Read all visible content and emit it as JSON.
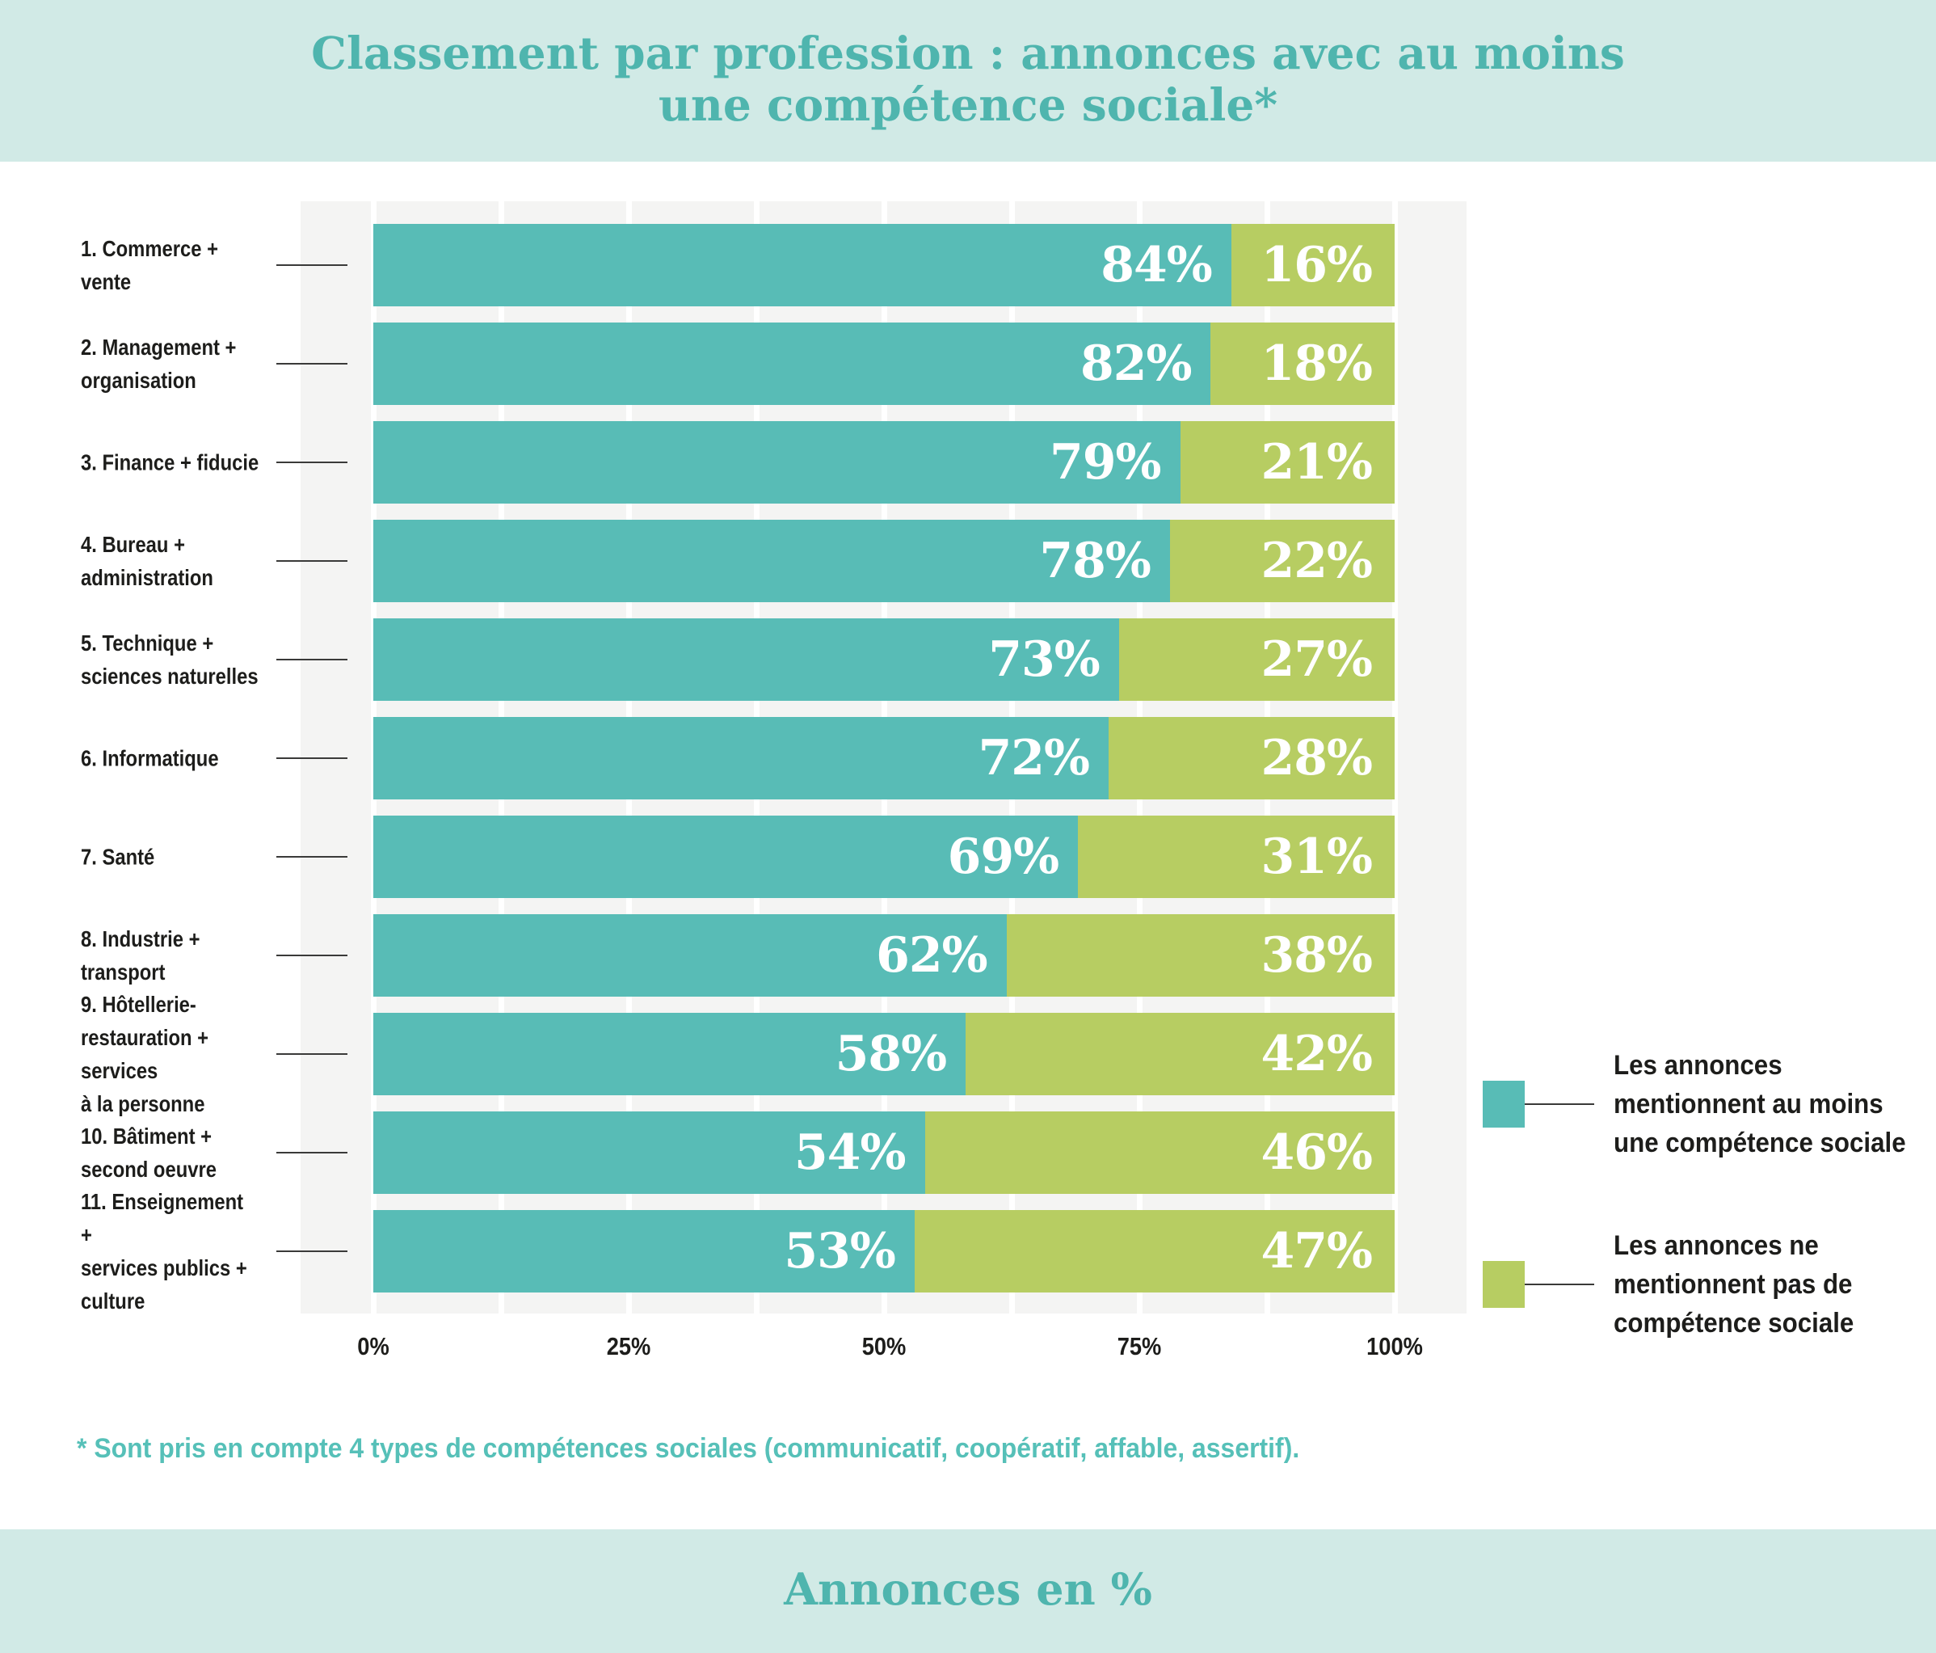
{
  "title_band": {
    "title": "Classement par profession : annonces avec au moins\nune compétence sociale*"
  },
  "chart_data": {
    "type": "bar",
    "orientation": "horizontal-stacked",
    "title": "Classement par profession : annonces avec au moins une compétence sociale*",
    "categories": [
      "1. Commerce + vente",
      "2. Management +\norganisation",
      "3. Finance + fiducie",
      "4. Bureau +\nadministration",
      "5. Technique +\nsciences naturelles",
      "6. Informatique",
      "7. Santé",
      "8. Industrie +\ntransport",
      "9. Hôtellerie-\nrestauration + services\nà la personne",
      "10. Bâtiment +\nsecond oeuvre",
      "11. Enseignement +\nservices publics +\nculture"
    ],
    "series": [
      {
        "name": "Les annonces mentionnent au moins une compétence sociale",
        "color": "#58bcb6",
        "values": [
          84,
          82,
          79,
          78,
          73,
          72,
          69,
          62,
          58,
          54,
          53
        ]
      },
      {
        "name": "Les annonces ne mentionnent pas de compétence sociale",
        "color": "#b7cd62",
        "values": [
          16,
          18,
          21,
          22,
          27,
          28,
          31,
          38,
          42,
          46,
          47
        ]
      }
    ],
    "value_suffix": "%",
    "x_ticks": [
      {
        "pct": 0,
        "label": "0%"
      },
      {
        "pct": 25,
        "label": "25%"
      },
      {
        "pct": 50,
        "label": "50%"
      },
      {
        "pct": 75,
        "label": "75%"
      },
      {
        "pct": 100,
        "label": "100%"
      }
    ],
    "xlim": [
      0,
      100
    ],
    "gridline_step_pct": 12.5,
    "grid": true,
    "legend_position": "right",
    "xlabel": "Annonces en %"
  },
  "legend": {
    "items": [
      {
        "label": "Les annonces\nmentionnent au moins\nune compétence sociale",
        "color": "#58bcb6"
      },
      {
        "label": "Les annonces ne\nmentionnent pas de\ncompétence sociale",
        "color": "#b7cd62"
      }
    ]
  },
  "footnote": "* Sont pris en compte 4 types de compétences sociales (communicatif, coopératif, affable, assertif).",
  "bottom_band": {
    "label": "Annonces en %"
  },
  "colors": {
    "band_background": "#d1eae6",
    "title_text": "#4fb5ae",
    "plot_background": "#f4f4f3",
    "gridline": "#ffffff",
    "series_mentioned": "#58bcb6",
    "series_not_mentioned": "#b7cd62",
    "value_text": "#ffffff",
    "label_text": "#1d1d1b",
    "connector_line": "#3a3a39",
    "footnote_text": "#56c0b8"
  }
}
